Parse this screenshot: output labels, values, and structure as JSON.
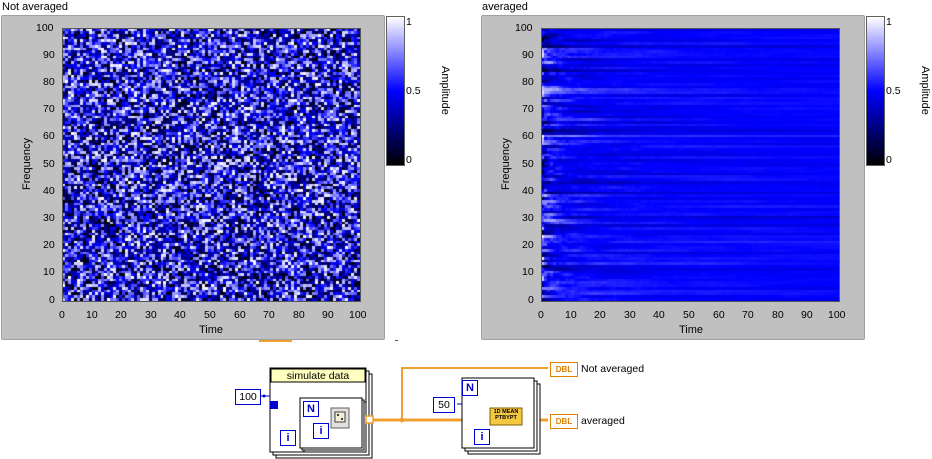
{
  "graphs": [
    {
      "title": "Not averaged",
      "x_axis_label": "Time",
      "y_axis_label": "Frequency",
      "x_ticks": [
        "0",
        "10",
        "20",
        "30",
        "40",
        "50",
        "60",
        "70",
        "80",
        "90",
        "100"
      ],
      "y_ticks": [
        "100",
        "90",
        "80",
        "70",
        "60",
        "50",
        "40",
        "30",
        "20",
        "10",
        "0"
      ],
      "colorbar_label": "Amplitude",
      "colorbar_ticks": [
        "1",
        "0.5",
        "0"
      ],
      "mode": "random"
    },
    {
      "title": "averaged",
      "x_axis_label": "Time",
      "y_axis_label": "Frequency",
      "x_ticks": [
        "0",
        "10",
        "20",
        "30",
        "40",
        "50",
        "60",
        "70",
        "80",
        "90",
        "100"
      ],
      "y_ticks": [
        "100",
        "90",
        "80",
        "70",
        "60",
        "50",
        "40",
        "30",
        "20",
        "10",
        "0"
      ],
      "colorbar_label": "Amplitude",
      "colorbar_ticks": [
        "1",
        "0.5",
        "0"
      ],
      "mode": "averaged"
    }
  ],
  "diagram": {
    "const_100": "100",
    "const_50": "50",
    "subvi_title": "simulate data",
    "loop_count_symbol": "N",
    "loop_index_symbol": "i",
    "mean_vi_text_1": "1D MEAN",
    "mean_vi_text_2": "PTBYPT",
    "terminal_type": "DBL",
    "terminal_not_averaged": "Not averaged",
    "terminal_averaged": "averaged"
  },
  "colors": {
    "frame": "#c0c0c0",
    "wire_orange": "#f0a030",
    "wire_blue": "#0000d0",
    "subvi_header": "#ffffc0",
    "terminal_border": "#e08000"
  }
}
